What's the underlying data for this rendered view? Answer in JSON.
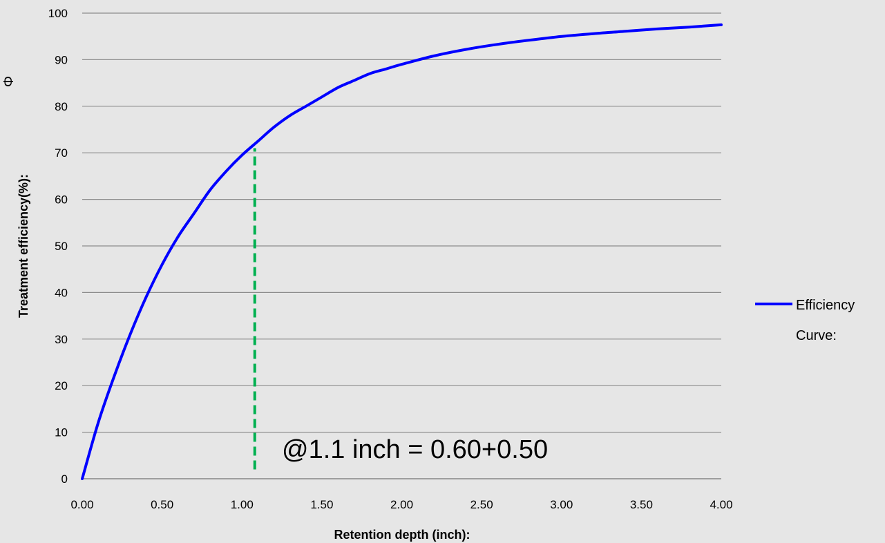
{
  "chart_data": {
    "type": "line",
    "title": "",
    "xlabel": "Retention depth (inch):",
    "ylabel": "Treatment efficiency(%):",
    "ylabel_extra": "Φ",
    "xlim": [
      0,
      4
    ],
    "ylim": [
      0,
      100
    ],
    "x_ticks": [
      "0.00",
      "0.50",
      "1.00",
      "1.50",
      "2.00",
      "2.50",
      "3.00",
      "3.50",
      "4.00"
    ],
    "y_ticks": [
      "0",
      "10",
      "20",
      "30",
      "40",
      "50",
      "60",
      "70",
      "80",
      "90",
      "100"
    ],
    "grid": "horizontal",
    "legend_position": "right",
    "series": [
      {
        "name": "Efficiency Curve:",
        "legend_lines": [
          "Efficiency",
          "Curve:"
        ],
        "color": "#0000ff",
        "points": [
          [
            0.0,
            0
          ],
          [
            0.1,
            12
          ],
          [
            0.2,
            22
          ],
          [
            0.3,
            31
          ],
          [
            0.4,
            39
          ],
          [
            0.5,
            46
          ],
          [
            0.6,
            52
          ],
          [
            0.7,
            57
          ],
          [
            0.8,
            62
          ],
          [
            0.9,
            66
          ],
          [
            1.0,
            69.5
          ],
          [
            1.1,
            72.5
          ],
          [
            1.2,
            75.5
          ],
          [
            1.3,
            78
          ],
          [
            1.4,
            80
          ],
          [
            1.5,
            82
          ],
          [
            1.6,
            84
          ],
          [
            1.7,
            85.5
          ],
          [
            1.8,
            87
          ],
          [
            1.9,
            88
          ],
          [
            2.0,
            89
          ],
          [
            2.2,
            90.8
          ],
          [
            2.4,
            92.2
          ],
          [
            2.6,
            93.3
          ],
          [
            2.8,
            94.2
          ],
          [
            3.0,
            95
          ],
          [
            3.2,
            95.6
          ],
          [
            3.4,
            96.1
          ],
          [
            3.6,
            96.6
          ],
          [
            3.8,
            97
          ],
          [
            4.0,
            97.5
          ]
        ]
      }
    ],
    "annotations": [
      {
        "text": "@1.1 inch = 0.60+0.50",
        "x": 1.08,
        "y_from": 2,
        "y_to": 71,
        "line_color": "#00b050"
      }
    ]
  }
}
